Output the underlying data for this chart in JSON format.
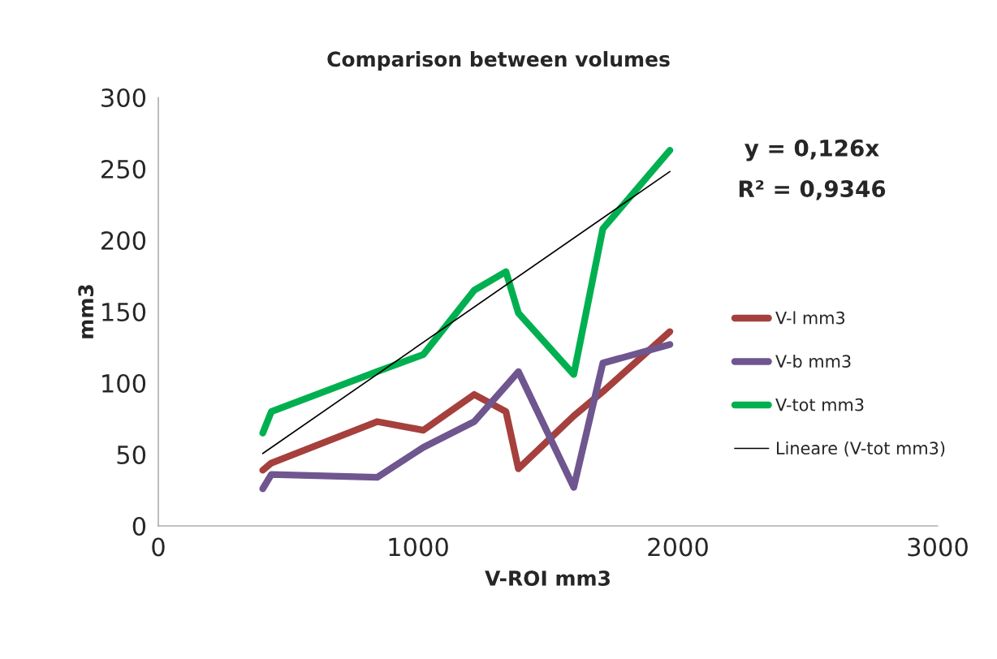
{
  "chart_data": {
    "type": "line",
    "title": "Comparison between volumes",
    "xlabel": "V-ROI mm3",
    "ylabel": "mm3",
    "x": [
      402,
      435,
      842,
      1020,
      1216,
      1338,
      1386,
      1599,
      1711,
      1969
    ],
    "series": [
      {
        "name": "V-l mm3",
        "color": "#a5403d",
        "values": [
          39,
          44,
          73,
          67,
          92,
          80,
          40,
          77,
          94,
          136
        ]
      },
      {
        "name": "V-b mm3",
        "color": "#6f568f",
        "values": [
          26,
          36,
          34,
          55,
          73,
          98,
          108,
          27,
          114,
          127
        ]
      },
      {
        "name": "V-tot mm3",
        "color": "#00b050",
        "values": [
          65,
          80,
          108,
          120,
          165,
          178,
          149,
          106,
          208,
          263
        ]
      },
      {
        "name": "Lineare (V-tot mm3)",
        "color": "#000000",
        "x": [
          402,
          1969
        ],
        "values": [
          50.7,
          248.1
        ]
      }
    ],
    "xlim": [
      0,
      3000
    ],
    "xticks": [
      0,
      1000,
      2000,
      3000
    ],
    "ylim": [
      0,
      300
    ],
    "yticks": [
      0,
      50,
      100,
      150,
      200,
      250,
      300
    ],
    "grid": false,
    "legend": "right",
    "marker": "none",
    "line_style": "solid",
    "annotations": [
      "y = 0,126x",
      "R² = 0,9346"
    ]
  }
}
